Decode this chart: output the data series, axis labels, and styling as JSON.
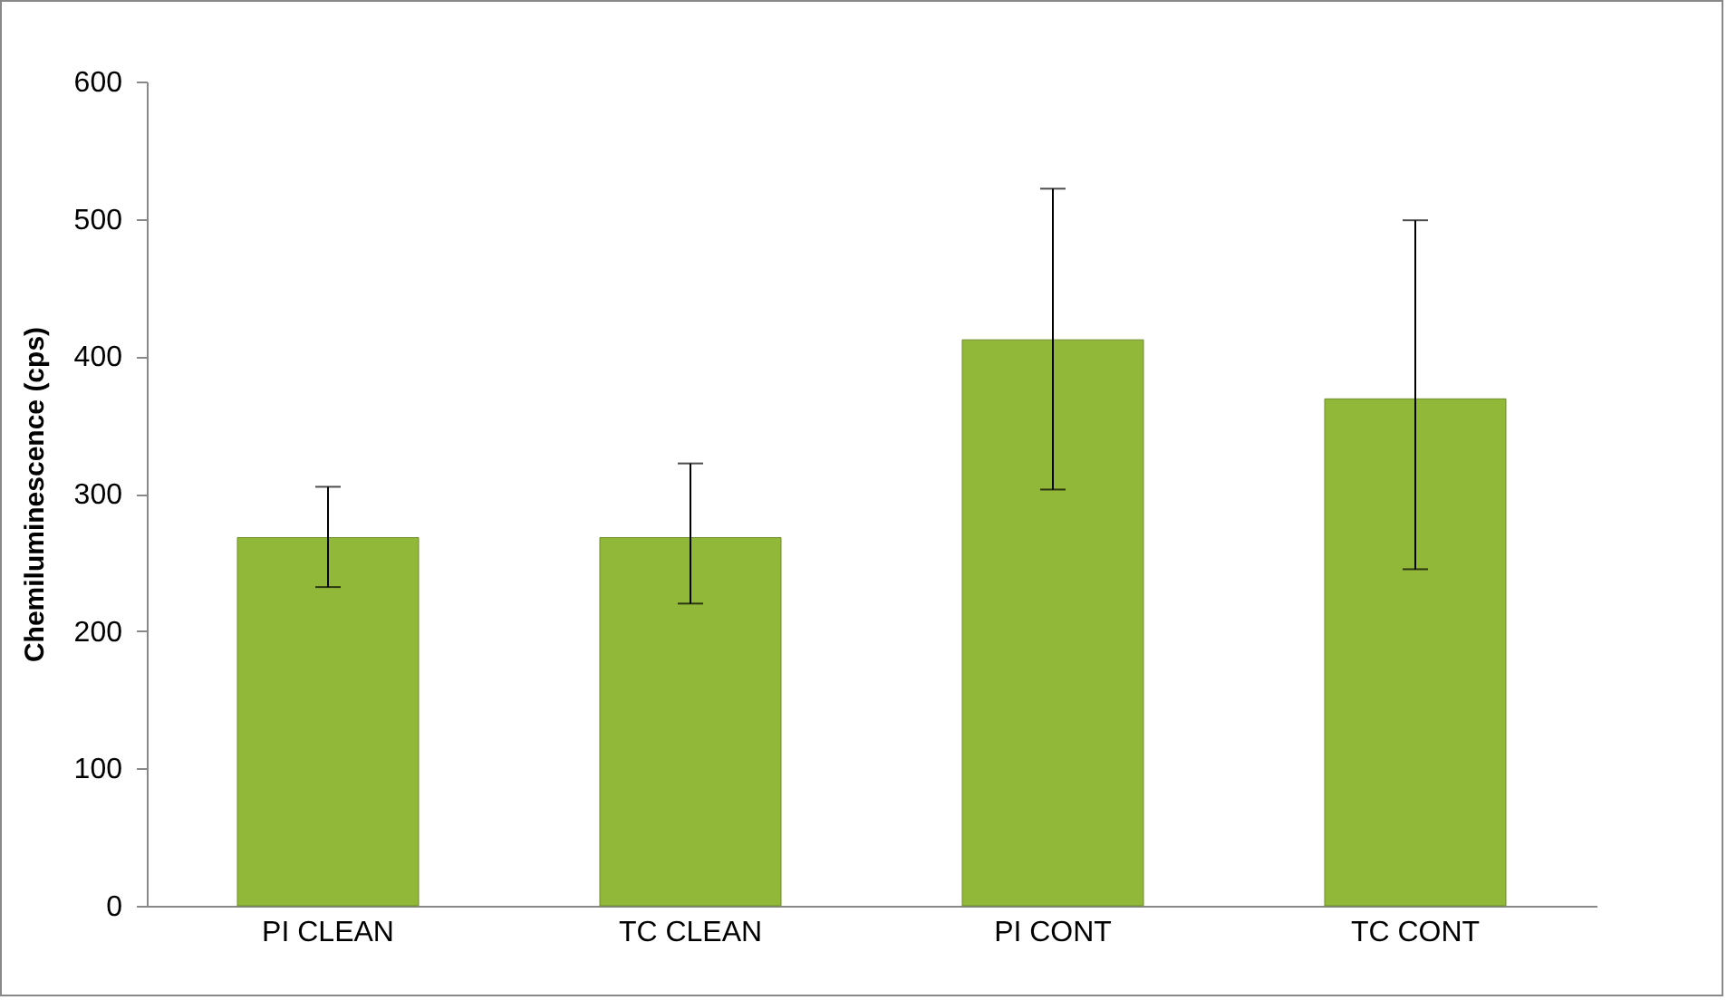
{
  "chart_data": {
    "type": "bar",
    "ylabel": "Chemiluminescence (cps)",
    "categories": [
      "PI CLEAN",
      "TC CLEAN",
      "PI CONT",
      "TC CONT"
    ],
    "values": [
      268,
      268,
      412,
      369
    ],
    "errors": [
      [
        232,
        305
      ],
      [
        220,
        322
      ],
      [
        303,
        522
      ],
      [
        245,
        499
      ]
    ],
    "color": "#92b83a",
    "ylim": [
      0,
      600
    ],
    "yticks": [
      0,
      100,
      200,
      300,
      400,
      500,
      600
    ],
    "grid": false
  }
}
